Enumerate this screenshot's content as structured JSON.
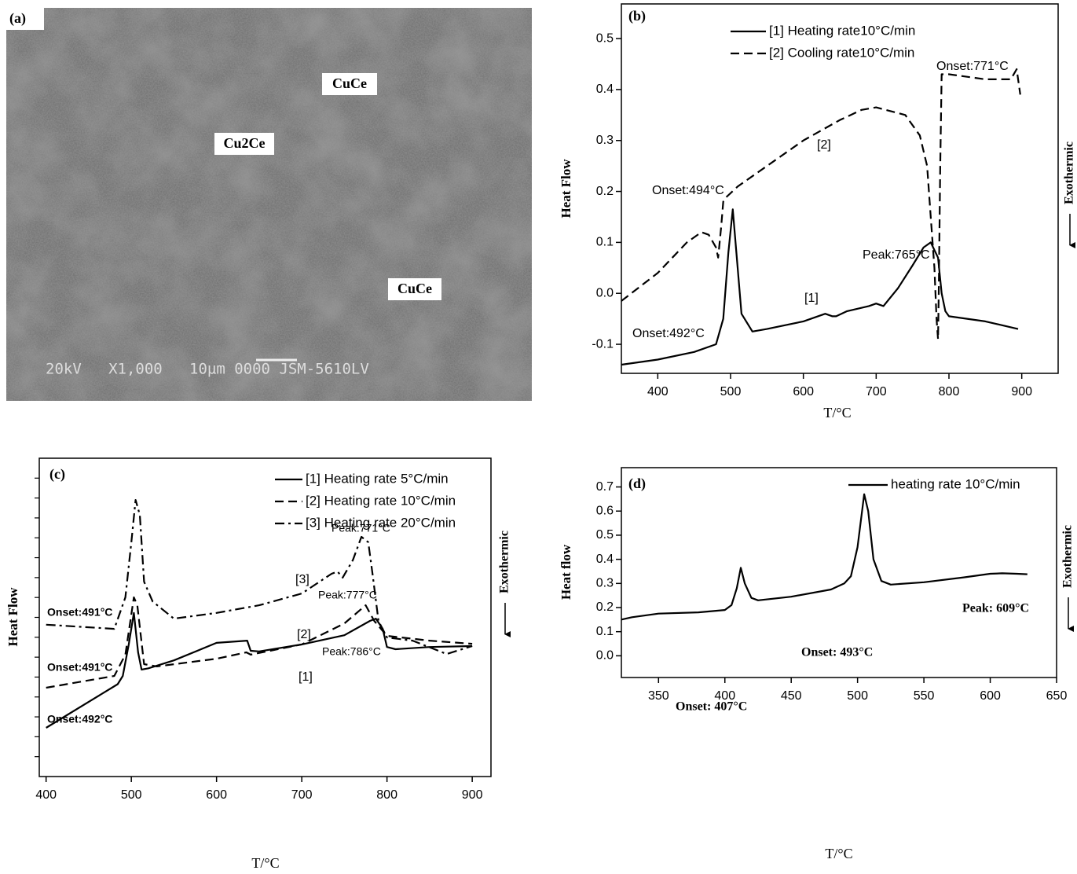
{
  "image": {
    "label": "(a)",
    "annotations": [
      "CuCe",
      "Cu2Ce",
      "CuCe"
    ],
    "scale_text": "20kV   X1,000   10µm 0000 JSM-5610LV"
  },
  "chart_data": [
    {
      "type": "line",
      "label": "(b)",
      "xlabel": "T/°C",
      "ylabel": "Heat Flow",
      "right_label": "Exothermic",
      "xlim": [
        350,
        950
      ],
      "xticks": [
        400,
        500,
        600,
        700,
        800,
        900
      ],
      "ylim": [
        -0.157,
        0.568
      ],
      "yticks": [
        -0.1,
        {
          "value": 0,
          "label": "0.0"
        },
        0.1,
        0.2,
        0.3,
        0.4,
        0.5
      ],
      "series": [
        {
          "name": "[1] Heating rate10°C/min",
          "color": "#000000",
          "style": "solid",
          "x": [
            350,
            400,
            450,
            480,
            490,
            497,
            503,
            508,
            515,
            530,
            550,
            600,
            620,
            630,
            640,
            645,
            660,
            690,
            700,
            710,
            730,
            750,
            765,
            775,
            785,
            790,
            795,
            800,
            850,
            895
          ],
          "values": [
            -0.14,
            -0.13,
            -0.115,
            -0.1,
            -0.05,
            0.08,
            0.165,
            0.08,
            -0.04,
            -0.075,
            -0.07,
            -0.055,
            -0.045,
            -0.04,
            -0.045,
            -0.045,
            -0.035,
            -0.025,
            -0.02,
            -0.025,
            0.01,
            0.055,
            0.09,
            0.1,
            0.07,
            0,
            -0.035,
            -0.045,
            -0.055,
            -0.07
          ]
        },
        {
          "name": "[2] Cooling rate10°C/min",
          "color": "#000000",
          "style": "dashed",
          "x": [
            350,
            400,
            440,
            460,
            470,
            480,
            483,
            487,
            490,
            495,
            510,
            550,
            600,
            650,
            680,
            700,
            740,
            760,
            770,
            775,
            780,
            783,
            785,
            786,
            788,
            790,
            800,
            850,
            885,
            893,
            898
          ],
          "values": [
            -0.015,
            0.04,
            0.1,
            0.12,
            0.115,
            0.09,
            0.07,
            0.13,
            0.18,
            0.19,
            0.21,
            0.25,
            0.3,
            0.34,
            0.36,
            0.365,
            0.35,
            0.31,
            0.25,
            0.15,
            0.05,
            -0.05,
            -0.09,
            0,
            0.25,
            0.43,
            0.43,
            0.42,
            0.42,
            0.44,
            0.39
          ]
        }
      ],
      "annotations": [
        "Onset:771°C",
        "[2]",
        "Onset:494°C",
        "Peak:765°C",
        "[1]",
        "Onset:492°C"
      ]
    },
    {
      "type": "line",
      "label": "(c)",
      "xlabel": "T/°C",
      "ylabel": "Heat Flow",
      "right_label": "Exothermic",
      "xlim": [
        392,
        922
      ],
      "xticks": [
        400,
        500,
        600,
        700,
        800,
        900
      ],
      "ylim": [
        0,
        100
      ],
      "series": [
        {
          "name": "[1] Heating rate 5°C/min",
          "color": "#000000",
          "style": "solid",
          "x": [
            400,
            484,
            490,
            497,
            503,
            508,
            512,
            520,
            550,
            600,
            636,
            640,
            650,
            700,
            750,
            780,
            787,
            795,
            800,
            810,
            850,
            900
          ],
          "values": [
            15.3,
            29,
            31.6,
            41.5,
            51.4,
            39,
            33.6,
            34,
            36.5,
            42,
            42.7,
            39.5,
            39.3,
            41.5,
            44.4,
            48.9,
            49.6,
            46.4,
            40.7,
            40,
            40.7,
            41
          ]
        },
        {
          "name": "[2] Heating rate 10°C/min",
          "color": "#000000",
          "style": "dashed",
          "x": [
            400,
            480,
            493,
            503,
            507,
            515,
            530,
            600,
            635,
            640,
            700,
            750,
            775,
            785,
            793,
            800,
            850,
            900
          ],
          "values": [
            27.9,
            31.6,
            38.3,
            56.3,
            53.8,
            35.3,
            34.6,
            37,
            39,
            38.3,
            41.5,
            48.1,
            53.8,
            48.9,
            46.4,
            44.2,
            42.7,
            41.7
          ]
        },
        {
          "name": "[3] Heating rate 20°C/min",
          "color": "#000000",
          "style": "dashdot",
          "x": [
            400,
            480,
            493,
            500,
            505,
            510,
            515,
            525,
            550,
            600,
            650,
            700,
            735,
            742,
            748,
            760,
            770,
            778,
            783,
            790,
            800,
            830,
            870,
            900
          ],
          "values": [
            47.7,
            46.4,
            56.3,
            73.6,
            86.9,
            82.2,
            61.2,
            55,
            49.6,
            51.4,
            53.8,
            57.5,
            63.7,
            64.4,
            62.5,
            68,
            75.3,
            73.6,
            63.7,
            48.9,
            43.7,
            42.7,
            38.5,
            41
          ]
        }
      ],
      "annotations": [
        "Peak:771°C",
        "[3]",
        "Peak:777°C",
        "[2]",
        "Peak:786°C",
        "[1]",
        "Onset:491°C",
        "Onset:491°C",
        "Onset:492°C"
      ]
    },
    {
      "type": "line",
      "label": "(d)",
      "xlabel": "T/°C",
      "ylabel": "Heat flow",
      "right_label": "Exothermic",
      "xlim": [
        322,
        650
      ],
      "xticks": [
        350,
        400,
        450,
        500,
        550,
        600,
        650
      ],
      "ylim": [
        -0.09,
        0.78
      ],
      "yticks": [
        {
          "value": 0,
          "label": "0.0"
        },
        0.1,
        0.2,
        0.3,
        0.4,
        0.5,
        0.6,
        0.7
      ],
      "series": [
        {
          "name": "heating rate 10°C/min",
          "color": "#000000",
          "style": "solid",
          "x": [
            322,
            330,
            350,
            380,
            400,
            405,
            409,
            412,
            415,
            420,
            425,
            450,
            480,
            490,
            495,
            500,
            505,
            508,
            512,
            518,
            525,
            550,
            580,
            600,
            609,
            620,
            628
          ],
          "values": [
            0.15,
            0.16,
            0.175,
            0.18,
            0.19,
            0.21,
            0.28,
            0.365,
            0.3,
            0.24,
            0.23,
            0.245,
            0.275,
            0.3,
            0.33,
            0.45,
            0.67,
            0.6,
            0.4,
            0.31,
            0.295,
            0.305,
            0.325,
            0.34,
            0.342,
            0.34,
            0.338
          ]
        }
      ],
      "annotations": [
        "Onset: 407°C",
        "Onset: 493°C",
        "Peak: 609°C"
      ]
    }
  ]
}
